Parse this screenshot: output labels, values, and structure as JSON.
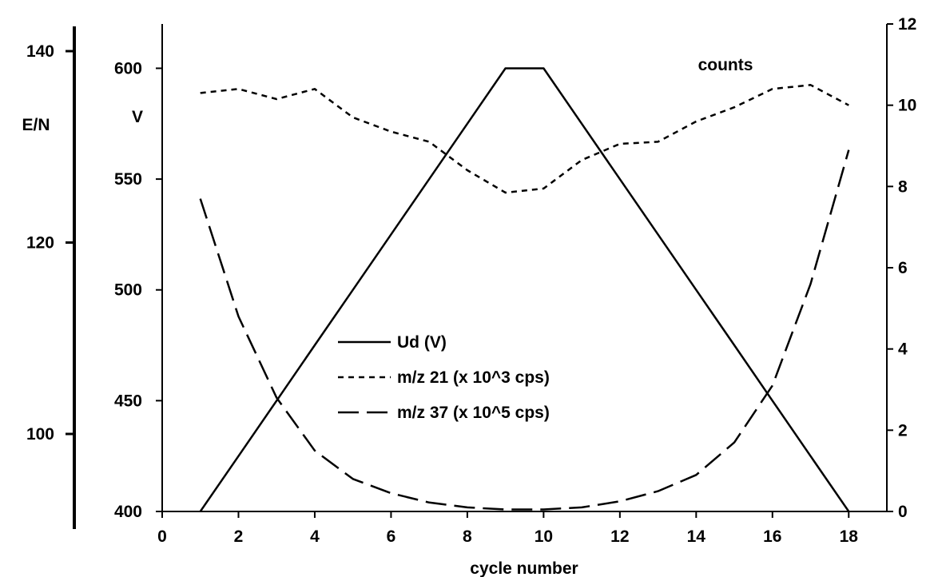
{
  "chart_data": {
    "type": "line",
    "xlabel": "cycle number",
    "xlim": [
      0,
      19
    ],
    "xticks": [
      "0",
      "2",
      "4",
      "6",
      "8",
      "10",
      "12",
      "14",
      "16",
      "18"
    ],
    "y_left_label": "V",
    "y_left_lim": [
      400,
      620
    ],
    "y_left_ticks": [
      "400",
      "450",
      "500",
      "550",
      "600"
    ],
    "y_outer_label": "E/N",
    "y_outer_ticks": [
      "100",
      "120",
      "140"
    ],
    "y_right_label": "counts",
    "y_right_lim": [
      0,
      12
    ],
    "y_right_ticks": [
      "0",
      "2",
      "4",
      "6",
      "8",
      "10",
      "12"
    ],
    "grid": false,
    "legend_position": "center",
    "series": [
      {
        "name": "Ud (V)",
        "axis": "left",
        "style": "solid",
        "x": [
          1,
          2,
          3,
          4,
          5,
          6,
          7,
          8,
          9,
          10,
          11,
          12,
          13,
          14,
          15,
          16,
          17,
          18
        ],
        "values": [
          400,
          425,
          450,
          475,
          500,
          525,
          550,
          575,
          600,
          600,
          575,
          550,
          525,
          500,
          475,
          450,
          425,
          400
        ]
      },
      {
        "name": "m/z 21 (x 10^3 cps)",
        "axis": "right",
        "style": "short-dash",
        "x": [
          1,
          2,
          3,
          4,
          5,
          6,
          7,
          8,
          9,
          10,
          11,
          12,
          13,
          14,
          15,
          16,
          17,
          18
        ],
        "values": [
          10.3,
          10.4,
          10.15,
          10.4,
          9.7,
          9.35,
          9.1,
          8.4,
          7.85,
          7.95,
          8.65,
          9.05,
          9.1,
          9.6,
          9.95,
          10.4,
          10.5,
          10.0
        ]
      },
      {
        "name": "m/z 37 (x 10^5 cps)",
        "axis": "right",
        "style": "long-dash",
        "x": [
          1,
          2,
          3,
          4,
          5,
          6,
          7,
          8,
          9,
          10,
          11,
          12,
          13,
          14,
          15,
          16,
          17,
          18
        ],
        "values": [
          7.7,
          4.8,
          2.8,
          1.5,
          0.8,
          0.45,
          0.22,
          0.1,
          0.05,
          0.05,
          0.1,
          0.25,
          0.5,
          0.9,
          1.7,
          3.1,
          5.6,
          8.9
        ]
      }
    ]
  }
}
